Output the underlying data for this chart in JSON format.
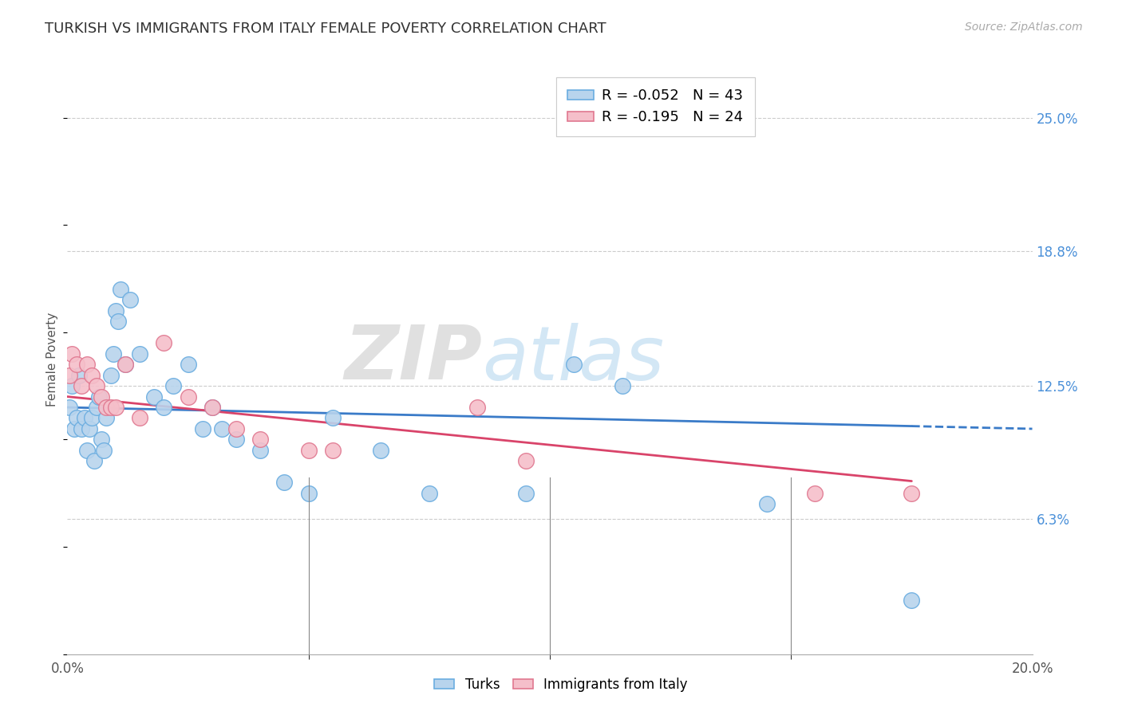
{
  "title": "TURKISH VS IMMIGRANTS FROM ITALY FEMALE POVERTY CORRELATION CHART",
  "source": "Source: ZipAtlas.com",
  "ylabel": "Female Poverty",
  "ytick_labels": [
    "6.3%",
    "12.5%",
    "18.8%",
    "25.0%"
  ],
  "ytick_values": [
    6.3,
    12.5,
    18.8,
    25.0
  ],
  "xmin": 0.0,
  "xmax": 20.0,
  "ymin": 0.0,
  "ymax": 27.5,
  "legend_r1": "R = -0.052",
  "legend_n1": "N = 43",
  "legend_r2": "R = -0.195",
  "legend_n2": "N = 24",
  "turks_color": "#b8d4ed",
  "turks_edge": "#6aade0",
  "italy_color": "#f5bfca",
  "italy_edge": "#e07890",
  "trendline_turks_color": "#3a7bc8",
  "trendline_italy_color": "#d9446a",
  "watermark": "ZIPatlas",
  "turks_x": [
    0.05,
    0.1,
    0.15,
    0.2,
    0.25,
    0.3,
    0.35,
    0.4,
    0.45,
    0.5,
    0.55,
    0.6,
    0.65,
    0.7,
    0.75,
    0.8,
    0.9,
    0.95,
    1.0,
    1.05,
    1.1,
    1.2,
    1.3,
    1.5,
    1.8,
    2.0,
    2.2,
    2.5,
    2.8,
    3.0,
    3.2,
    3.5,
    4.0,
    4.5,
    5.0,
    5.5,
    6.5,
    7.5,
    9.5,
    10.5,
    11.5,
    14.5,
    17.5
  ],
  "turks_y": [
    11.5,
    12.5,
    10.5,
    11.0,
    13.0,
    10.5,
    11.0,
    9.5,
    10.5,
    11.0,
    9.0,
    11.5,
    12.0,
    10.0,
    9.5,
    11.0,
    13.0,
    14.0,
    16.0,
    15.5,
    17.0,
    13.5,
    16.5,
    14.0,
    12.0,
    11.5,
    12.5,
    13.5,
    10.5,
    11.5,
    10.5,
    10.0,
    9.5,
    8.0,
    7.5,
    11.0,
    9.5,
    7.5,
    7.5,
    13.5,
    12.5,
    7.0,
    2.5
  ],
  "italy_x": [
    0.05,
    0.1,
    0.2,
    0.3,
    0.4,
    0.5,
    0.6,
    0.7,
    0.8,
    0.9,
    1.0,
    1.2,
    1.5,
    2.0,
    2.5,
    3.0,
    3.5,
    4.0,
    5.0,
    5.5,
    8.5,
    9.5,
    15.5,
    17.5
  ],
  "italy_y": [
    13.0,
    14.0,
    13.5,
    12.5,
    13.5,
    13.0,
    12.5,
    12.0,
    11.5,
    11.5,
    11.5,
    13.5,
    11.0,
    14.5,
    12.0,
    11.5,
    10.5,
    10.0,
    9.5,
    9.5,
    11.5,
    9.0,
    7.5,
    7.5
  ]
}
